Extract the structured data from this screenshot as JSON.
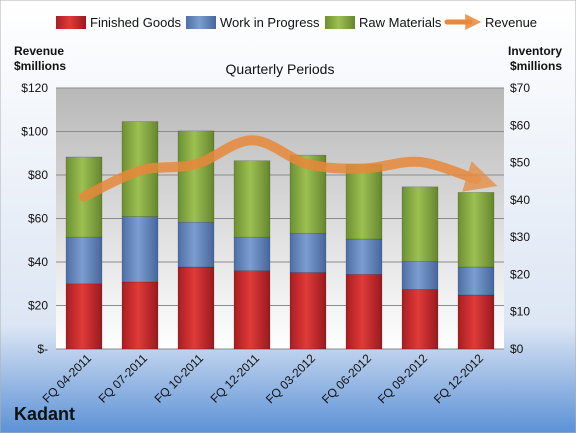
{
  "chart_data": {
    "type": "bar",
    "subtype": "stacked-bar-with-line",
    "title": "Quarterly Periods",
    "brand": "Kadant",
    "categories": [
      "FQ 04-2011",
      "FQ 07-2011",
      "FQ 10-2011",
      "FQ 12-2011",
      "FQ 03-2012",
      "FQ 06-2012",
      "FQ 09-2012",
      "FQ 12-2012"
    ],
    "left_axis": {
      "title_line1": "Revenue",
      "title_line2": "$millions",
      "min": 0,
      "max": 120,
      "step": 20,
      "ticks": [
        "$-",
        "$20",
        "$40",
        "$60",
        "$80",
        "$100",
        "$120"
      ]
    },
    "right_axis": {
      "title_line1": "Inventory",
      "title_line2": "$millions",
      "min": 0,
      "max": 70,
      "step": 10,
      "ticks": [
        "$0",
        "$10",
        "$20",
        "$30",
        "$40",
        "$50",
        "$60",
        "$70"
      ]
    },
    "series": [
      {
        "name": "Finished Goods",
        "axis": "right",
        "kind": "bar",
        "color": "#c0282d",
        "values": [
          17.5,
          18,
          22,
          21,
          20.5,
          20,
          16,
          14.5
        ]
      },
      {
        "name": "Work in Progress",
        "axis": "right",
        "kind": "bar",
        "color": "#5b80b8",
        "values": [
          12.5,
          17.5,
          12,
          9,
          10.5,
          9.5,
          7.5,
          7.5
        ]
      },
      {
        "name": "Raw Materials",
        "axis": "right",
        "kind": "bar",
        "color": "#7fa33e",
        "values": [
          21.5,
          25.5,
          24.5,
          20.5,
          21,
          20,
          20,
          20
        ]
      },
      {
        "name": "Revenue",
        "axis": "left",
        "kind": "line",
        "color": "#e8883a",
        "values": [
          70,
          82,
          85,
          96,
          85,
          83,
          86,
          78
        ]
      }
    ],
    "legend_position": "top",
    "grid": true
  }
}
